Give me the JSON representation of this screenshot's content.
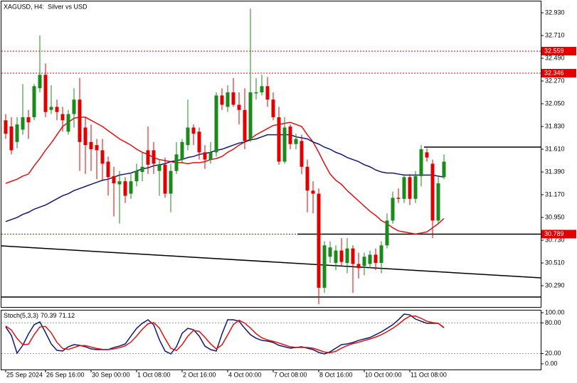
{
  "chart_data": {
    "type": "candlestick",
    "title": "XAGUSD, H4:  Silver vs USD",
    "categories": [
      "25 Sep 2024",
      null,
      null,
      null,
      null,
      null,
      null,
      "26 Sep 16:00",
      null,
      null,
      null,
      null,
      null,
      null,
      null,
      "30 Sep 00:00",
      null,
      null,
      null,
      null,
      null,
      null,
      null,
      "1 Oct 08:00",
      null,
      null,
      null,
      null,
      null,
      null,
      null,
      "2 Oct 16:00",
      null,
      null,
      null,
      null,
      null,
      null,
      null,
      "4 Oct 00:00",
      null,
      null,
      null,
      null,
      null,
      null,
      null,
      "7 Oct 08:00",
      null,
      null,
      null,
      null,
      null,
      null,
      null,
      "8 Oct 16:00",
      null,
      null,
      null,
      null,
      null,
      null,
      null,
      "10 Oct 00:00",
      null,
      null,
      null,
      null,
      null,
      null,
      null,
      "11 Oct 08:00",
      null,
      null,
      null,
      null,
      null,
      null
    ],
    "open": [
      31.89,
      31.83,
      31.68,
      31.8,
      31.92,
      31.92,
      32.2,
      32.33,
      31.99,
      32.02,
      31.95,
      31.78,
      31.95,
      32.09,
      31.82,
      31.68,
      31.65,
      31.6,
      31.49,
      31.35,
      31.27,
      31.3,
      31.18,
      31.3,
      31.39,
      31.6,
      31.6,
      31.4,
      31.46,
      31.18,
      31.4,
      31.51,
      31.65,
      31.82,
      31.78,
      31.58,
      31.51,
      31.58,
      32.13,
      32.02,
      32.16,
      32.04,
      31.99,
      31.71,
      32.15,
      32.16,
      32.22,
      32.09,
      31.92,
      31.49,
      31.83,
      31.66,
      31.69,
      31.44,
      31.21,
      31.18,
      30.27,
      30.57,
      30.51,
      30.63,
      30.51,
      30.65,
      30.5,
      30.48,
      30.5,
      30.59,
      30.51,
      30.68,
      30.92,
      31.14,
      31.13,
      31.34,
      31.13,
      31.35,
      31.58,
      31.47,
      30.92,
      31.34
    ],
    "high": [
      31.95,
      31.92,
      31.92,
      32.24,
      31.99,
      32.24,
      32.71,
      32.44,
      32.23,
      32.09,
      32.02,
      31.99,
      32.2,
      32.3,
      31.92,
      31.85,
      31.71,
      31.71,
      31.54,
      31.44,
      31.4,
      31.34,
      31.37,
      31.47,
      31.58,
      31.83,
      31.68,
      31.51,
      31.53,
      31.47,
      31.68,
      31.71,
      32.09,
      31.85,
      31.82,
      31.65,
      31.68,
      32.16,
      32.2,
      32.23,
      32.3,
      32.16,
      32.2,
      32.97,
      32.3,
      32.33,
      32.31,
      32.16,
      32.02,
      31.92,
      31.85,
      31.76,
      31.75,
      31.51,
      31.3,
      31.23,
      30.72,
      30.72,
      30.68,
      30.75,
      30.75,
      30.68,
      30.61,
      30.61,
      30.63,
      30.65,
      30.72,
      30.99,
      31.2,
      31.23,
      31.37,
      31.37,
      31.4,
      31.65,
      31.62,
      31.51,
      31.34,
      31.56
    ],
    "low": [
      31.71,
      31.56,
      31.62,
      31.75,
      31.71,
      31.89,
      32.16,
      31.92,
      31.95,
      31.89,
      31.78,
      31.75,
      31.82,
      31.4,
      31.37,
      31.4,
      31.32,
      31.3,
      31.16,
      30.96,
      30.89,
      31.09,
      31.13,
      31.25,
      31.3,
      31.37,
      31.37,
      31.16,
      31.14,
      31.0,
      31.37,
      31.47,
      31.6,
      31.65,
      31.51,
      31.42,
      31.47,
      31.54,
      31.99,
      31.97,
      32.02,
      31.85,
      31.61,
      31.68,
      32.09,
      32.13,
      32.02,
      31.89,
      31.46,
      31.47,
      31.61,
      31.61,
      31.37,
      31.0,
      30.99,
      30.11,
      30.22,
      30.51,
      30.44,
      30.48,
      30.41,
      30.22,
      30.36,
      30.39,
      30.46,
      30.44,
      30.41,
      30.65,
      30.89,
      31.09,
      31.09,
      31.07,
      31.09,
      31.25,
      31.49,
      30.75,
      30.89,
      31.32
    ],
    "close": [
      31.76,
      31.6,
      31.85,
      31.92,
      31.87,
      32.22,
      32.33,
      31.97,
      32.02,
      31.97,
      31.89,
      31.95,
      32.09,
      31.68,
      31.65,
      31.61,
      31.6,
      31.47,
      31.34,
      31.28,
      31.3,
      31.16,
      31.3,
      31.4,
      31.44,
      31.46,
      31.47,
      31.46,
      31.18,
      31.4,
      31.56,
      31.68,
      31.82,
      31.76,
      31.58,
      31.51,
      31.58,
      32.13,
      32.04,
      32.16,
      32.04,
      31.99,
      31.69,
      32.16,
      32.16,
      32.22,
      32.09,
      31.92,
      31.49,
      31.82,
      31.66,
      31.71,
      31.44,
      31.21,
      31.18,
      30.27,
      30.68,
      30.66,
      30.63,
      30.52,
      30.65,
      30.5,
      30.46,
      30.57,
      30.59,
      30.51,
      30.68,
      30.92,
      31.14,
      31.13,
      31.34,
      31.13,
      31.35,
      31.61,
      31.53,
      30.92,
      31.28,
      31.49
    ],
    "up_color": "#1a8a1a",
    "down_color": "#e00000",
    "ylim": [
      30.084,
      33.04
    ],
    "yticks": [
      {
        "value": 32.93,
        "label": "32.930"
      },
      {
        "value": 32.71,
        "label": "32.710"
      },
      {
        "value": 32.49,
        "label": "32.490"
      },
      {
        "value": 32.27,
        "label": "32.270"
      },
      {
        "value": 32.05,
        "label": "32.050"
      },
      {
        "value": 31.83,
        "label": "31.830"
      },
      {
        "value": 31.61,
        "label": "31.610"
      },
      {
        "value": 31.39,
        "label": "31.390"
      },
      {
        "value": 31.17,
        "label": "31.170"
      },
      {
        "value": 30.95,
        "label": "30.950"
      },
      {
        "value": 30.73,
        "label": "30.730"
      },
      {
        "value": 30.51,
        "label": "30.510"
      },
      {
        "value": 30.29,
        "label": "30.290"
      }
    ],
    "grid": false,
    "moving_averages": [
      {
        "color": "#e01010",
        "values": [
          31.28,
          31.3,
          31.32,
          31.35,
          31.37,
          31.45,
          31.52,
          31.6,
          31.67,
          31.75,
          31.83,
          31.87,
          31.91,
          31.92,
          31.92,
          31.89,
          31.86,
          31.83,
          31.79,
          31.75,
          31.71,
          31.68,
          31.65,
          31.61,
          31.58,
          31.56,
          31.53,
          31.51,
          31.5,
          31.49,
          31.48,
          31.48,
          31.47,
          31.48,
          31.48,
          31.49,
          31.51,
          31.52,
          31.54,
          31.58,
          31.61,
          31.65,
          31.68,
          31.71,
          31.75,
          31.78,
          31.81,
          31.84,
          31.85,
          31.86,
          31.87,
          31.85,
          31.83,
          31.75,
          31.68,
          31.58,
          31.47,
          31.37,
          31.31,
          31.27,
          31.21,
          31.16,
          31.11,
          31.06,
          31.01,
          30.97,
          30.92,
          30.89,
          30.85,
          30.82,
          30.81,
          30.8,
          30.79,
          30.8,
          30.81,
          30.85,
          30.89,
          30.94
        ]
      },
      {
        "color": "#101a70",
        "values": [
          30.91,
          30.93,
          30.95,
          30.98,
          31.0,
          31.03,
          31.05,
          31.07,
          31.1,
          31.13,
          31.16,
          31.18,
          31.21,
          31.23,
          31.25,
          31.27,
          31.29,
          31.31,
          31.32,
          31.34,
          31.36,
          31.37,
          31.38,
          31.4,
          31.42,
          31.43,
          31.45,
          31.46,
          31.47,
          31.49,
          31.5,
          31.51,
          31.53,
          31.54,
          31.56,
          31.57,
          31.58,
          31.6,
          31.61,
          31.63,
          31.65,
          31.67,
          31.68,
          31.7,
          31.71,
          31.73,
          31.75,
          31.75,
          31.75,
          31.75,
          31.75,
          31.73,
          31.72,
          31.71,
          31.68,
          31.66,
          31.63,
          31.61,
          31.58,
          31.56,
          31.53,
          31.51,
          31.49,
          31.46,
          31.44,
          31.41,
          31.39,
          31.38,
          31.38,
          31.37,
          31.36,
          31.36,
          31.36,
          31.36,
          31.36,
          31.36,
          31.35,
          31.34
        ]
      }
    ],
    "levels": [
      {
        "value": 32.559,
        "color": "#e00000"
      },
      {
        "value": 32.346,
        "color": "#e00000"
      },
      {
        "value": 30.789,
        "color": "#e00000"
      }
    ],
    "lines": [
      {
        "x": [
          73.5,
          94
        ],
        "y": [
          31.631,
          31.631
        ]
      },
      {
        "x": [
          51.25,
          94
        ],
        "y": [
          30.789,
          30.789
        ]
      },
      {
        "x": [
          -0.75,
          94
        ],
        "y": [
          30.675,
          30.366
        ]
      },
      {
        "x": [
          -0.75,
          94
        ],
        "y": [
          30.18,
          30.18
        ]
      }
    ],
    "oscillator": {
      "label": "Stoch(5,3,3)",
      "ylim": [
        -11.1,
        104.2
      ],
      "yticks": [
        {
          "value": 100,
          "label": "100.00"
        },
        {
          "value": 80,
          "label": "80.00"
        },
        {
          "value": 20,
          "label": "20.00"
        },
        {
          "value": 0,
          "label": "0.00"
        }
      ],
      "levels": [
        80,
        20
      ],
      "series": [
        {
          "color": "#101a70",
          "values": [
            72.2,
            55.6,
            20.8,
            36.1,
            58.3,
            76.4,
            81.9,
            61.1,
            38.9,
            26.4,
            25.0,
            33.3,
            37.5,
            36.1,
            33.3,
            29.2,
            27.8,
            27.8,
            27.8,
            31.9,
            34.7,
            38.9,
            54.2,
            69.4,
            79.2,
            86.1,
            76.4,
            47.2,
            25.0,
            19.4,
            33.3,
            59.7,
            69.4,
            66.7,
            54.2,
            34.7,
            27.8,
            25.0,
            58.3,
            86.1,
            86.1,
            83.3,
            69.4,
            56.9,
            50.0,
            45.8,
            44.4,
            41.7,
            36.1,
            33.3,
            30.6,
            31.9,
            33.3,
            30.6,
            27.8,
            22.2,
            19.4,
            23.6,
            30.6,
            37.5,
            38.9,
            41.7,
            45.8,
            48.6,
            51.4,
            56.9,
            62.5,
            69.4,
            76.4,
            86.1,
            97.2,
            95.8,
            87.5,
            83.3,
            79.2,
            79.2,
            79.2,
            70.39
          ]
        },
        {
          "color": "#e01010",
          "values": [
            74.0,
            66.0,
            49.5,
            37.5,
            38.4,
            56.9,
            72.2,
            73.1,
            60.6,
            42.1,
            30.1,
            28.2,
            31.9,
            35.6,
            35.6,
            32.9,
            30.1,
            28.3,
            27.8,
            29.2,
            31.5,
            35.2,
            42.6,
            54.2,
            67.6,
            78.2,
            80.6,
            69.9,
            49.5,
            30.5,
            25.9,
            37.5,
            54.1,
            65.3,
            63.4,
            51.9,
            38.9,
            29.2,
            37.0,
            56.5,
            76.8,
            85.2,
            79.6,
            69.9,
            58.8,
            50.9,
            46.7,
            44.0,
            40.7,
            37.0,
            33.3,
            31.9,
            31.9,
            31.9,
            30.6,
            26.9,
            23.1,
            21.7,
            24.5,
            30.6,
            35.7,
            39.4,
            42.1,
            45.4,
            48.6,
            52.3,
            56.9,
            62.9,
            69.4,
            77.3,
            86.6,
            93.0,
            93.5,
            88.9,
            83.3,
            80.6,
            79.2,
            71.12
          ]
        }
      ]
    }
  }
}
